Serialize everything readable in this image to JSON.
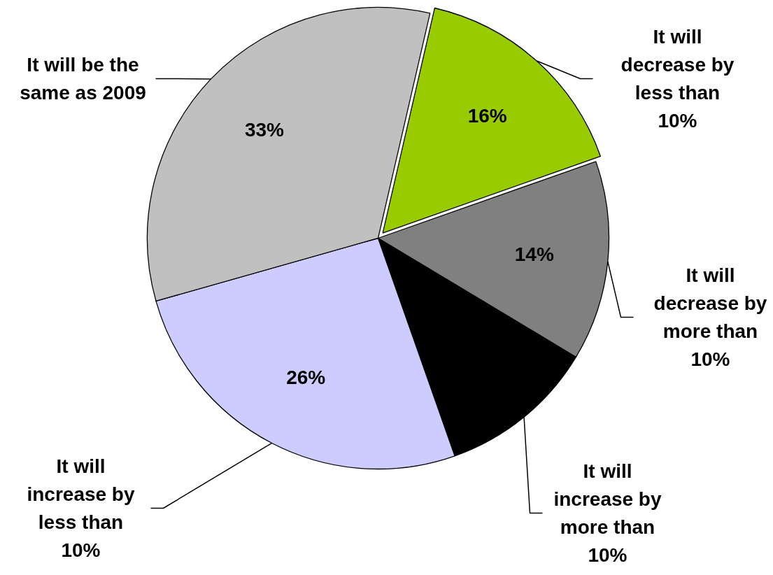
{
  "chart_data": {
    "type": "pie",
    "categories": [
      "It will decrease by less than 10%",
      "It will decrease by more than 10%",
      "It will increase by more than 10%",
      "It will increase by less than 10%",
      "It will be the same as 2009"
    ],
    "values": [
      16,
      14,
      11,
      26,
      33
    ],
    "colors": [
      "#99cc00",
      "#808080",
      "#000000",
      "#ccccff",
      "#c0c0c0"
    ],
    "value_labels": [
      "16%",
      "14%",
      null,
      "26%",
      "33%"
    ]
  }
}
